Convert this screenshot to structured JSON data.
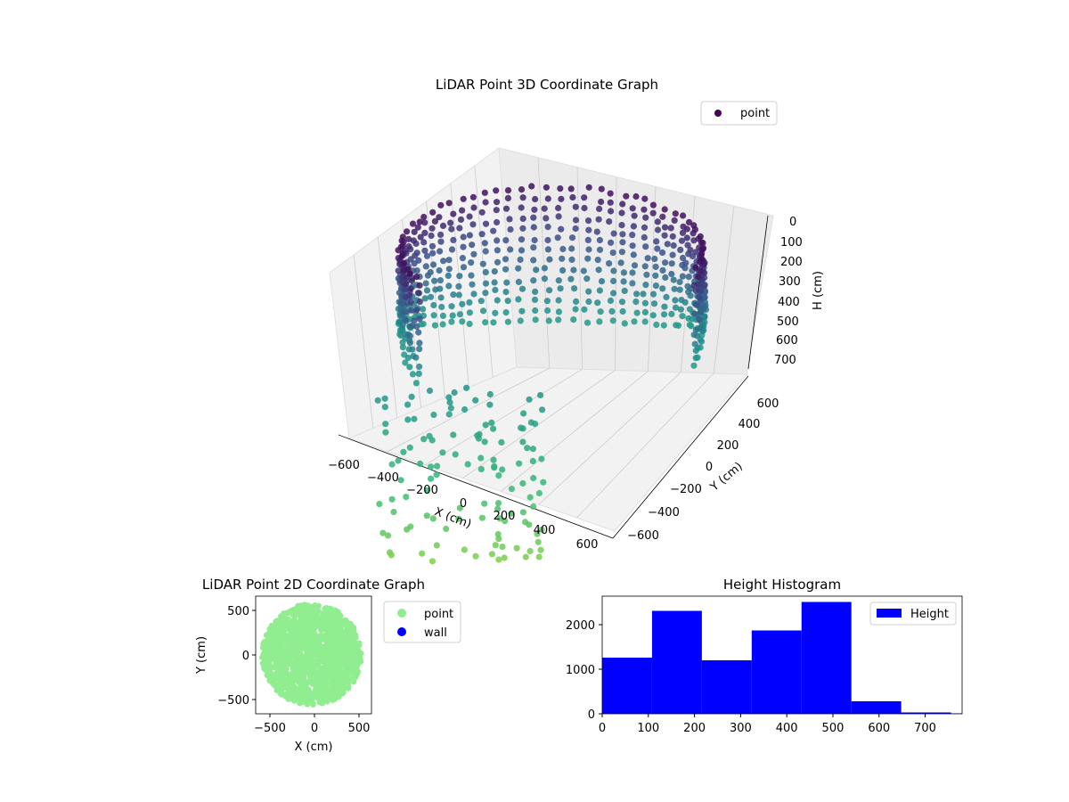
{
  "figure": {
    "title3d": "LiDAR Point 3D Coordinate Graph",
    "title2d": "LiDAR Point 2D Coordinate Graph",
    "title_hist": "Height Histogram"
  },
  "colors": {
    "cmap_top": "#440154",
    "cmap_mid": "#31688e",
    "cmap_teal": "#21918c",
    "cmap_green": "#35b779",
    "cmap_yellow": "#90d743",
    "point2d": "#90ee90",
    "wall": "#0000ff",
    "hist": "#0000ff",
    "pane": "#f2f2f2",
    "grid": "#cccccc"
  },
  "chart_data": [
    {
      "type": "scatter",
      "subtype": "3d",
      "title": "LiDAR Point 3D Coordinate Graph",
      "xlabel": "X (cm)",
      "ylabel": "Y (cm)",
      "zlabel": "H (cm)",
      "xlim": [
        -650,
        650
      ],
      "ylim": [
        -650,
        650
      ],
      "zlim": [
        0,
        780
      ],
      "z_inverted": true,
      "x_ticks": [
        "−600",
        "−400",
        "−200",
        "0",
        "200",
        "400",
        "600"
      ],
      "y_ticks": [
        "−600",
        "−400",
        "−200",
        "0",
        "200",
        "400",
        "600"
      ],
      "z_ticks": [
        "0",
        "100",
        "200",
        "300",
        "400",
        "500",
        "600",
        "700"
      ],
      "legend": [
        "point"
      ],
      "legend_loc": "upper right",
      "colormap": "viridis (by height)",
      "description": "Points arranged in vertical scan lines around a curved wall, colored by height"
    },
    {
      "type": "scatter",
      "title": "LiDAR Point 2D Coordinate Graph",
      "xlabel": "X (cm)",
      "ylabel": "Y (cm)",
      "xlim": [
        -650,
        650
      ],
      "ylim": [
        -650,
        650
      ],
      "x_ticks": [
        "−500",
        "0",
        "500"
      ],
      "y_ticks": [
        "−500",
        "0",
        "500"
      ],
      "series": [
        {
          "name": "point",
          "color": "#90ee90",
          "region": "filled disc of points, radius about 550 cm, centred near (-20, 0)"
        },
        {
          "name": "wall",
          "color": "#0000ff",
          "values": []
        }
      ],
      "legend_loc": "outside right"
    },
    {
      "type": "bar",
      "subtype": "histogram",
      "title": "Height Histogram",
      "bin_edges": [
        0,
        108,
        216,
        324,
        432,
        540,
        648,
        756,
        780
      ],
      "values": [
        1260,
        2310,
        1200,
        1870,
        2510,
        280,
        30,
        10
      ],
      "xlim": [
        0,
        780
      ],
      "ylim": [
        0,
        2640
      ],
      "x_ticks": [
        "0",
        "100",
        "200",
        "300",
        "400",
        "500",
        "600",
        "700"
      ],
      "y_ticks": [
        "0",
        "1000",
        "2000"
      ],
      "series": [
        {
          "name": "Height",
          "color": "#0000ff"
        }
      ],
      "legend_loc": "upper right"
    }
  ]
}
